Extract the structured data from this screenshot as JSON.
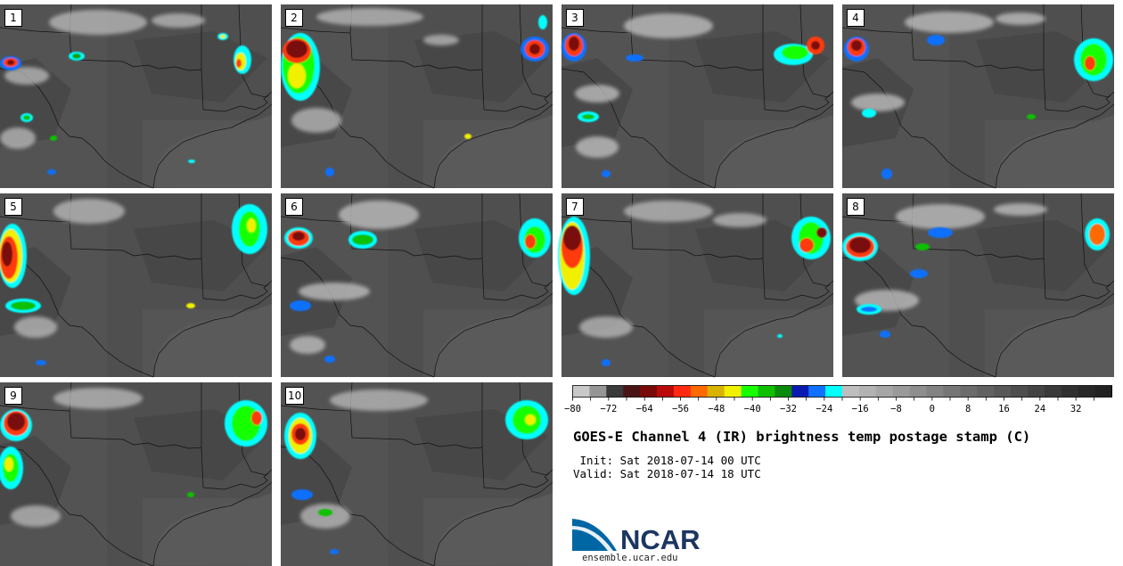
{
  "panels": [
    {
      "label": "1"
    },
    {
      "label": "2"
    },
    {
      "label": "3"
    },
    {
      "label": "4"
    },
    {
      "label": "5"
    },
    {
      "label": "6"
    },
    {
      "label": "7"
    },
    {
      "label": "8"
    },
    {
      "label": "9"
    },
    {
      "label": "10"
    }
  ],
  "colorbar": {
    "colors": [
      "#c8c8c8",
      "#969696",
      "#3a3a3a",
      "#4a1414",
      "#7a0a0a",
      "#bb0a0a",
      "#ff2a10",
      "#ff6a00",
      "#d8b400",
      "#f0f000",
      "#18ff00",
      "#10c000",
      "#0a8a0a",
      "#0a1ab0",
      "#1070ff",
      "#00ffff",
      "#bebebe",
      "#b2b2b2",
      "#a6a6a6",
      "#9a9a9a",
      "#8e8e8e",
      "#828282",
      "#767676",
      "#6c6c6c",
      "#626262",
      "#585858",
      "#4e4e4e",
      "#444444",
      "#3a3a3a",
      "#303030",
      "#282828",
      "#222222"
    ],
    "tick_labels": [
      "−80",
      "−72",
      "−64",
      "−56",
      "−48",
      "−40",
      "−32",
      "−24",
      "−16",
      "−8",
      "0",
      "8",
      "16",
      "24",
      "32"
    ],
    "min": -80,
    "max": 40
  },
  "title": "GOES-E Channel 4 (IR) brightness temp postage stamp (C)",
  "init_line": " Init: Sat 2018-07-14 00 UTC",
  "valid_line": "Valid: Sat 2018-07-14 18 UTC",
  "logo": {
    "text": "NCAR",
    "url": "ensemble.ucar.edu",
    "colors": {
      "blue": "#0066a4",
      "navy": "#1b3660"
    }
  }
}
